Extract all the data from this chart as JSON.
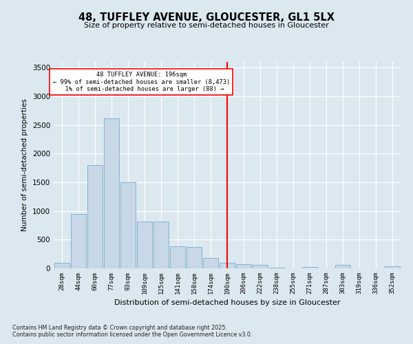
{
  "title": "48, TUFFLEY AVENUE, GLOUCESTER, GL1 5LX",
  "subtitle": "Size of property relative to semi-detached houses in Gloucester",
  "xlabel": "Distribution of semi-detached houses by size in Gloucester",
  "ylabel": "Number of semi-detached properties",
  "categories": [
    "28sqm",
    "44sqm",
    "60sqm",
    "77sqm",
    "93sqm",
    "109sqm",
    "125sqm",
    "141sqm",
    "158sqm",
    "174sqm",
    "190sqm",
    "206sqm",
    "222sqm",
    "238sqm",
    "255sqm",
    "271sqm",
    "287sqm",
    "303sqm",
    "319sqm",
    "336sqm",
    "352sqm"
  ],
  "values": [
    100,
    950,
    1800,
    2620,
    1500,
    820,
    820,
    380,
    375,
    185,
    100,
    75,
    65,
    15,
    0,
    30,
    0,
    55,
    0,
    0,
    40
  ],
  "bar_color": "#c8d8e8",
  "bar_edge_color": "#7aaac8",
  "vline_x": 10,
  "smaller_pct": "99%",
  "smaller_count": "8,473",
  "larger_pct": "1%",
  "larger_count": "88",
  "ylim": [
    0,
    3600
  ],
  "yticks": [
    0,
    500,
    1000,
    1500,
    2000,
    2500,
    3000,
    3500
  ],
  "bg_color": "#dce8f0",
  "plot_bg_color": "#dce8f0",
  "grid_color": "#ffffff",
  "footer1": "Contains HM Land Registry data © Crown copyright and database right 2025.",
  "footer2": "Contains public sector information licensed under the Open Government Licence v3.0."
}
